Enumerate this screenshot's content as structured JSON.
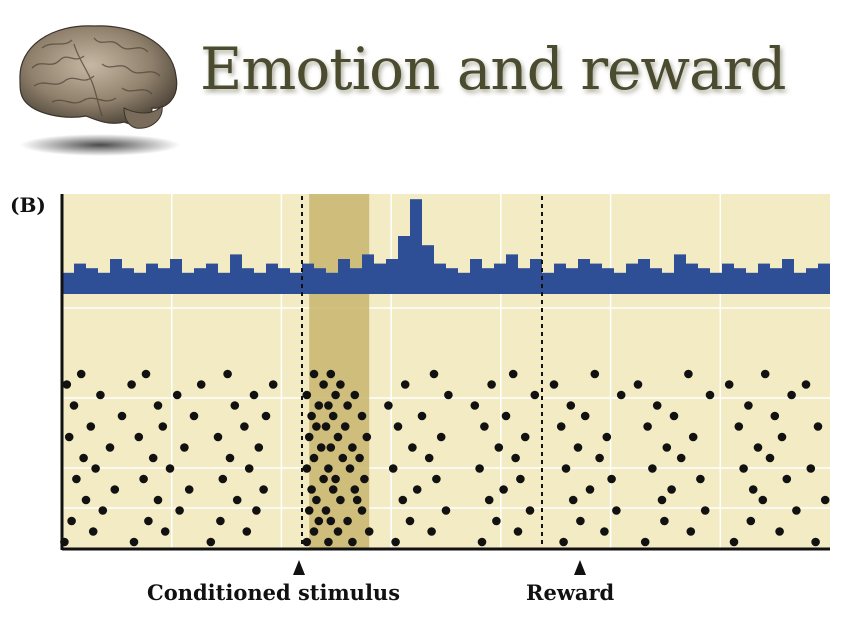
{
  "slide": {
    "title": "Emotion and reward",
    "panel_label": "(B)",
    "brain_image": "brain-illustration"
  },
  "figure": {
    "events": [
      {
        "name": "conditioned_stimulus",
        "label": "Conditioned stimulus",
        "time": 0.0
      },
      {
        "name": "reward",
        "label": "Reward",
        "time": 1.0
      }
    ],
    "time_range": [
      -1.0,
      2.2
    ],
    "highlight_window": [
      0.03,
      0.28
    ],
    "colors": {
      "background": "#f2ebc3",
      "highlight": "#c8b56e",
      "histogram": "#2e4e96",
      "spike_dot": "#111111",
      "grid": "#ffffff"
    }
  },
  "chart_data": {
    "type": "raster_histogram",
    "histogram": {
      "bin_width": 0.05,
      "bin_start": -1.0,
      "counts": [
        2,
        4,
        3,
        2,
        5,
        3,
        2,
        4,
        3,
        5,
        2,
        3,
        4,
        2,
        6,
        3,
        2,
        4,
        3,
        2,
        4,
        3,
        2,
        5,
        3,
        6,
        4,
        5,
        10,
        18,
        8,
        4,
        3,
        2,
        5,
        3,
        4,
        6,
        3,
        5,
        2,
        4,
        3,
        5,
        4,
        3,
        2,
        4,
        5,
        3,
        2,
        6,
        4,
        3,
        2,
        4,
        3,
        2,
        4,
        3,
        5,
        2,
        3,
        4
      ]
    },
    "raster": {
      "trials": 17,
      "spike_times_per_trial": [
        [
          -0.92,
          -0.65,
          -0.31,
          0.05,
          0.12,
          0.55,
          0.88,
          1.22,
          1.61,
          1.93
        ],
        [
          -0.98,
          -0.71,
          -0.42,
          -0.12,
          0.09,
          0.16,
          0.43,
          0.79,
          1.05,
          1.4,
          1.78,
          2.1
        ],
        [
          -0.84,
          -0.52,
          -0.2,
          0.02,
          0.14,
          0.22,
          0.61,
          0.97,
          1.33,
          1.7,
          2.04
        ],
        [
          -0.95,
          -0.6,
          -0.28,
          0.07,
          0.11,
          0.19,
          0.36,
          0.72,
          1.12,
          1.48,
          1.86
        ],
        [
          -0.75,
          -0.45,
          -0.15,
          0.04,
          0.13,
          0.25,
          0.5,
          0.85,
          1.18,
          1.55,
          1.97
        ],
        [
          -0.88,
          -0.58,
          -0.24,
          0.06,
          0.1,
          0.18,
          0.4,
          0.76,
          1.08,
          1.44,
          1.82,
          2.15
        ],
        [
          -0.97,
          -0.68,
          -0.35,
          0.03,
          0.15,
          0.27,
          0.58,
          0.93,
          1.27,
          1.63,
          2.0
        ],
        [
          -0.8,
          -0.49,
          -0.18,
          0.08,
          0.12,
          0.21,
          0.46,
          0.82,
          1.15,
          1.52,
          1.9
        ],
        [
          -0.91,
          -0.62,
          -0.3,
          0.05,
          0.17,
          0.24,
          0.53,
          0.89,
          1.24,
          1.58,
          1.95
        ],
        [
          -0.86,
          -0.55,
          -0.22,
          0.02,
          0.11,
          0.2,
          0.38,
          0.74,
          1.1,
          1.46,
          1.84,
          2.12
        ],
        [
          -0.94,
          -0.66,
          -0.33,
          0.09,
          0.14,
          0.26,
          0.56,
          0.91,
          1.29,
          1.66,
          2.02
        ],
        [
          -0.78,
          -0.47,
          -0.16,
          0.04,
          0.13,
          0.22,
          0.48,
          0.84,
          1.2,
          1.54,
          1.88
        ],
        [
          -0.9,
          -0.6,
          -0.27,
          0.06,
          0.16,
          0.23,
          0.42,
          0.78,
          1.13,
          1.5,
          1.92,
          2.18
        ],
        [
          -0.83,
          -0.51,
          -0.19,
          0.03,
          0.1,
          0.25,
          0.6,
          0.95,
          1.31,
          1.68,
          2.06
        ],
        [
          -0.96,
          -0.64,
          -0.34,
          0.07,
          0.12,
          0.19,
          0.45,
          0.81,
          1.16,
          1.51,
          1.87
        ],
        [
          -0.87,
          -0.57,
          -0.23,
          0.05,
          0.15,
          0.28,
          0.54,
          0.9,
          1.26,
          1.62,
          1.99
        ],
        [
          -0.99,
          -0.7,
          -0.38,
          0.02,
          0.11,
          0.21,
          0.39,
          0.75,
          1.09,
          1.43,
          1.8,
          2.14
        ]
      ]
    }
  }
}
